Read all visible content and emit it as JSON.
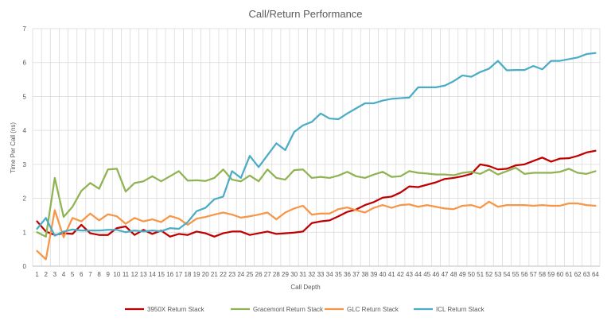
{
  "chart_data": {
    "type": "line",
    "title": "Call/Return Performance",
    "xlabel": "Call Depth",
    "ylabel": "Time Per Call (ns)",
    "ylim": [
      0,
      7
    ],
    "yticks": [
      0,
      1,
      2,
      3,
      4,
      5,
      6,
      7
    ],
    "grid": true,
    "legend_position": "bottom",
    "x": [
      1,
      2,
      3,
      4,
      5,
      6,
      7,
      8,
      9,
      10,
      11,
      12,
      13,
      14,
      15,
      16,
      17,
      18,
      19,
      20,
      21,
      22,
      23,
      24,
      25,
      26,
      27,
      28,
      29,
      30,
      31,
      32,
      33,
      34,
      35,
      36,
      37,
      38,
      39,
      40,
      41,
      42,
      43,
      44,
      45,
      46,
      47,
      48,
      49,
      50,
      51,
      52,
      53,
      54,
      55,
      56,
      57,
      58,
      59,
      60,
      61,
      62,
      63,
      64
    ],
    "series": [
      {
        "name": "3950X Return Stack",
        "color": "#C00000",
        "values": [
          1.32,
          1.02,
          0.92,
          0.97,
          0.95,
          1.22,
          0.97,
          0.92,
          0.92,
          1.12,
          1.17,
          0.92,
          1.07,
          0.95,
          1.05,
          0.87,
          0.95,
          0.92,
          1.02,
          0.97,
          0.87,
          0.97,
          1.02,
          1.02,
          0.92,
          0.97,
          1.02,
          0.95,
          0.97,
          0.99,
          1.02,
          1.27,
          1.32,
          1.35,
          1.47,
          1.6,
          1.67,
          1.8,
          1.89,
          2.02,
          2.05,
          2.17,
          2.35,
          2.33,
          2.4,
          2.47,
          2.57,
          2.6,
          2.65,
          2.72,
          3.0,
          2.95,
          2.85,
          2.87,
          2.97,
          3.0,
          3.1,
          3.2,
          3.08,
          3.17,
          3.18,
          3.25,
          3.35,
          3.4
        ]
      },
      {
        "name": "Gracemont Return Stack",
        "color": "#8FB352",
        "values": [
          1.0,
          0.87,
          2.6,
          1.45,
          1.75,
          2.22,
          2.45,
          2.28,
          2.85,
          2.87,
          2.2,
          2.45,
          2.5,
          2.65,
          2.5,
          2.65,
          2.8,
          2.52,
          2.53,
          2.51,
          2.6,
          2.85,
          2.55,
          2.5,
          2.67,
          2.5,
          2.85,
          2.6,
          2.55,
          2.83,
          2.85,
          2.6,
          2.63,
          2.6,
          2.67,
          2.78,
          2.65,
          2.6,
          2.7,
          2.78,
          2.63,
          2.65,
          2.8,
          2.75,
          2.73,
          2.7,
          2.7,
          2.68,
          2.75,
          2.78,
          2.72,
          2.85,
          2.7,
          2.8,
          2.9,
          2.72,
          2.75,
          2.75,
          2.75,
          2.78,
          2.87,
          2.75,
          2.72,
          2.8
        ]
      },
      {
        "name": "GLC Return Stack",
        "color": "#F79646",
        "values": [
          0.45,
          0.2,
          1.65,
          0.85,
          1.42,
          1.32,
          1.55,
          1.35,
          1.53,
          1.47,
          1.25,
          1.42,
          1.32,
          1.38,
          1.3,
          1.48,
          1.4,
          1.22,
          1.4,
          1.45,
          1.52,
          1.58,
          1.52,
          1.43,
          1.47,
          1.52,
          1.58,
          1.38,
          1.58,
          1.7,
          1.78,
          1.52,
          1.55,
          1.55,
          1.68,
          1.73,
          1.65,
          1.58,
          1.72,
          1.8,
          1.72,
          1.8,
          1.82,
          1.75,
          1.8,
          1.75,
          1.7,
          1.68,
          1.78,
          1.8,
          1.72,
          1.9,
          1.75,
          1.8,
          1.8,
          1.8,
          1.78,
          1.8,
          1.78,
          1.78,
          1.85,
          1.85,
          1.8,
          1.78
        ]
      },
      {
        "name": "ICL Return Stack",
        "color": "#4BACC6",
        "values": [
          1.1,
          1.42,
          0.9,
          1.02,
          1.08,
          1.05,
          1.05,
          1.05,
          1.07,
          1.07,
          1.0,
          1.05,
          1.02,
          1.05,
          1.03,
          1.12,
          1.1,
          1.3,
          1.62,
          1.72,
          1.97,
          2.05,
          2.8,
          2.6,
          3.25,
          2.92,
          3.27,
          3.62,
          3.42,
          3.95,
          4.15,
          4.25,
          4.5,
          4.35,
          4.33,
          4.5,
          4.65,
          4.8,
          4.8,
          4.88,
          4.93,
          4.95,
          4.97,
          5.27,
          5.27,
          5.27,
          5.32,
          5.45,
          5.62,
          5.58,
          5.72,
          5.82,
          6.05,
          5.77,
          5.78,
          5.78,
          5.9,
          5.8,
          6.05,
          6.05,
          6.1,
          6.15,
          6.25,
          6.28
        ]
      }
    ]
  }
}
